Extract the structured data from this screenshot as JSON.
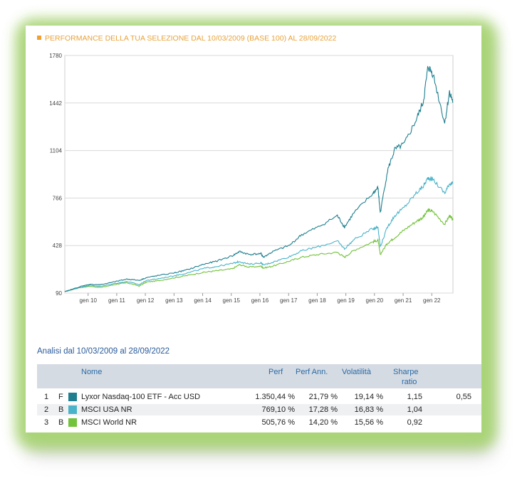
{
  "header": {
    "title": "PERFORMANCE DELLA TUA SELEZIONE DAL 10/03/2009 (BASE 100) AL 28/09/2022"
  },
  "analysis_title": "Analisi dal 10/03/2009 al 28/09/2022",
  "table": {
    "headers": {
      "name": "Nome",
      "perf": "Perf",
      "perf_ann": "Perf Ann.",
      "volatility": "Volatilità",
      "sharpe": "Sharpe",
      "sharpe2": "ratio"
    },
    "rows": [
      {
        "n": "1",
        "type": "F",
        "color": "#1f7f8f",
        "name": "Lyxor Nasdaq-100 ETF - Acc USD",
        "perf": "1.350,44 %",
        "perf_ann": "21,79 %",
        "volatility": "19,14 %",
        "sharpe": "1,15",
        "extra": "0,55"
      },
      {
        "n": "2",
        "type": "B",
        "color": "#4bb3c9",
        "name": "MSCI USA NR",
        "perf": "769,10 %",
        "perf_ann": "17,28 %",
        "volatility": "16,83 %",
        "sharpe": "1,04",
        "extra": ""
      },
      {
        "n": "3",
        "type": "B",
        "color": "#72c23a",
        "name": "MSCI World NR",
        "perf": "505,76 %",
        "perf_ann": "14,20 %",
        "volatility": "15,56 %",
        "sharpe": "0,92",
        "extra": ""
      }
    ]
  },
  "chart_data": {
    "type": "line",
    "ylim": [
      90,
      1780
    ],
    "yticks": [
      "1780",
      "1442",
      "1104",
      "766",
      "428",
      "90"
    ],
    "xticks": [
      "gen 10",
      "gen 11",
      "gen 12",
      "gen 13",
      "gen 14",
      "gen 15",
      "gen 16",
      "gen 17",
      "gen 18",
      "gen 19",
      "gen 20",
      "gen 21",
      "gen 22"
    ],
    "x": [
      "2009-03-10",
      "2009-09",
      "2010-01",
      "2010-06",
      "2011-01",
      "2011-05",
      "2011-10",
      "2012-01",
      "2012-06",
      "2013-01",
      "2013-06",
      "2014-01",
      "2014-06",
      "2015-01",
      "2015-04",
      "2015-08",
      "2016-01",
      "2016-02",
      "2016-06",
      "2017-01",
      "2017-06",
      "2018-01",
      "2018-09",
      "2018-12",
      "2019-04",
      "2019-12",
      "2020-02",
      "2020-03",
      "2020-06",
      "2020-09",
      "2021-01",
      "2021-06",
      "2021-09",
      "2021-11",
      "2022-01",
      "2022-06",
      "2022-08",
      "2022-09-28"
    ],
    "series": [
      {
        "name": "Lyxor Nasdaq-100 ETF - Acc USD",
        "color": "#1f7f8f",
        "values": [
          100,
          135,
          152,
          150,
          175,
          190,
          180,
          200,
          215,
          235,
          255,
          295,
          315,
          355,
          385,
          365,
          370,
          345,
          385,
          430,
          505,
          560,
          640,
          560,
          660,
          800,
          840,
          660,
          960,
          1110,
          1150,
          1320,
          1450,
          1700,
          1650,
          1300,
          1520,
          1450
        ]
      },
      {
        "name": "MSCI USA NR",
        "color": "#4bb3c9",
        "values": [
          100,
          130,
          145,
          138,
          162,
          172,
          150,
          180,
          192,
          215,
          232,
          265,
          278,
          300,
          315,
          295,
          305,
          290,
          310,
          350,
          390,
          420,
          460,
          405,
          470,
          550,
          560,
          420,
          560,
          640,
          700,
          800,
          850,
          910,
          900,
          800,
          870,
          870
        ]
      },
      {
        "name": "MSCI World NR",
        "color": "#72c23a",
        "values": [
          100,
          128,
          138,
          130,
          155,
          163,
          140,
          168,
          178,
          200,
          215,
          238,
          248,
          262,
          292,
          275,
          280,
          268,
          282,
          318,
          345,
          365,
          380,
          345,
          395,
          455,
          465,
          365,
          445,
          485,
          540,
          600,
          630,
          680,
          670,
          580,
          640,
          610
        ]
      }
    ]
  }
}
